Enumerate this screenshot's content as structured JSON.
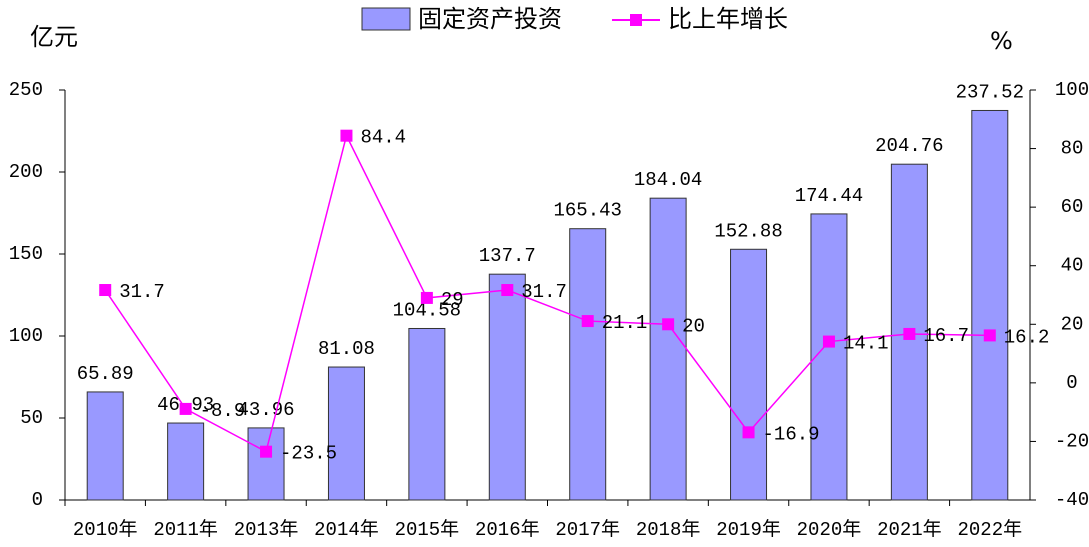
{
  "chart_data": {
    "type": "bar",
    "y_label": "亿元",
    "y2_label": "%",
    "categories": [
      "2010年",
      "2011年",
      "2013年",
      "2014年",
      "2015年",
      "2016年",
      "2017年",
      "2018年",
      "2019年",
      "2020年",
      "2021年",
      "2022年"
    ],
    "series": [
      {
        "name": "固定资产投资",
        "type": "bar",
        "color": "#9999ff",
        "values": [
          65.89,
          46.93,
          43.96,
          81.08,
          104.58,
          137.7,
          165.43,
          184.04,
          152.88,
          174.44,
          204.76,
          237.52
        ]
      },
      {
        "name": "比上年增长",
        "type": "line",
        "axis": "y2",
        "color": "#ff00ff",
        "values": [
          31.7,
          -8.9,
          -23.5,
          84.4,
          29,
          31.7,
          21.1,
          20,
          -16.9,
          14.1,
          16.7,
          16.2
        ]
      }
    ],
    "ylim": [
      0,
      250
    ],
    "yticks": [
      0,
      50,
      100,
      150,
      200,
      250
    ],
    "y2lim": [
      -40,
      100
    ],
    "y2ticks": [
      -40,
      -20,
      0,
      20,
      40,
      60,
      80,
      100
    ],
    "legend": "top",
    "grid": false
  }
}
